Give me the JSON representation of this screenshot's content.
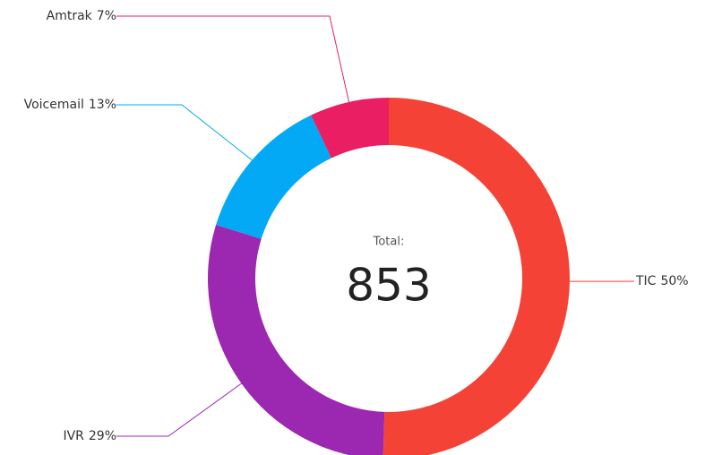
{
  "chart_data": {
    "type": "donut",
    "categories": [
      "TIC",
      "IVR",
      "Voicemail",
      "Amtrak"
    ],
    "values": [
      50,
      29,
      13,
      7
    ],
    "value_labels": [
      "50%",
      "29%",
      "13%",
      "7%"
    ],
    "colors": [
      "#f44336",
      "#9c27b0",
      "#03a9f4",
      "#e91e63"
    ],
    "center_label": "Total:",
    "total": 853
  }
}
